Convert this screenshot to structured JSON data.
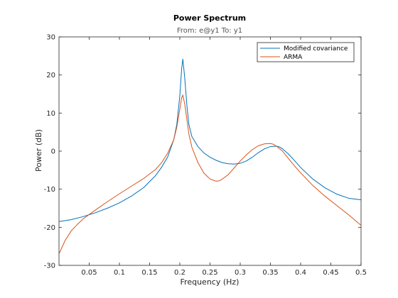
{
  "chart_data": {
    "type": "line",
    "title": "Power Spectrum",
    "subtitle": "From: e@y1  To: y1",
    "xlabel": "Frequency  (Hz)",
    "ylabel": "Power (dB)",
    "xlim": [
      0,
      0.5
    ],
    "ylim": [
      -30,
      30
    ],
    "xticks": [
      0.05,
      0.1,
      0.15,
      0.2,
      0.25,
      0.3,
      0.35,
      0.4,
      0.45,
      0.5
    ],
    "xtick_labels": [
      "0.05",
      "0.1",
      "0.15",
      "0.2",
      "0.25",
      "0.3",
      "0.35",
      "0.4",
      "0.45",
      "0.5"
    ],
    "yticks": [
      -30,
      -20,
      -10,
      0,
      10,
      20,
      30
    ],
    "ytick_labels": [
      "-30",
      "-20",
      "-10",
      "0",
      "10",
      "20",
      "30"
    ],
    "grid": false,
    "legend_position": "top-right",
    "series": [
      {
        "name": "Modified covariance",
        "color": "#0072BD",
        "x": [
          0.0,
          0.02,
          0.04,
          0.06,
          0.08,
          0.1,
          0.12,
          0.14,
          0.16,
          0.17,
          0.18,
          0.19,
          0.195,
          0.2,
          0.203,
          0.205,
          0.208,
          0.212,
          0.215,
          0.22,
          0.23,
          0.24,
          0.25,
          0.26,
          0.27,
          0.28,
          0.29,
          0.3,
          0.31,
          0.32,
          0.33,
          0.34,
          0.35,
          0.36,
          0.365,
          0.37,
          0.38,
          0.39,
          0.4,
          0.42,
          0.44,
          0.46,
          0.48,
          0.5
        ],
        "y": [
          -18.5,
          -18.0,
          -17.2,
          -16.2,
          -15.0,
          -13.6,
          -11.8,
          -9.6,
          -6.4,
          -4.2,
          -1.5,
          3.0,
          7.0,
          14.5,
          21.5,
          24.2,
          19.5,
          11.5,
          7.0,
          3.8,
          1.2,
          -0.5,
          -1.6,
          -2.4,
          -3.0,
          -3.3,
          -3.4,
          -3.2,
          -2.6,
          -1.6,
          -0.4,
          0.6,
          1.2,
          1.3,
          1.1,
          0.6,
          -0.8,
          -2.5,
          -4.3,
          -7.3,
          -9.6,
          -11.3,
          -12.4,
          -12.8
        ]
      },
      {
        "name": "ARMA",
        "color": "#D95319",
        "x": [
          0.0,
          0.01,
          0.02,
          0.03,
          0.04,
          0.06,
          0.08,
          0.1,
          0.12,
          0.14,
          0.16,
          0.17,
          0.18,
          0.19,
          0.195,
          0.2,
          0.203,
          0.205,
          0.208,
          0.212,
          0.215,
          0.22,
          0.23,
          0.24,
          0.25,
          0.26,
          0.265,
          0.27,
          0.28,
          0.29,
          0.3,
          0.31,
          0.32,
          0.33,
          0.34,
          0.35,
          0.355,
          0.36,
          0.37,
          0.38,
          0.39,
          0.4,
          0.42,
          0.44,
          0.46,
          0.48,
          0.5
        ],
        "y": [
          -27.0,
          -23.5,
          -21.0,
          -19.3,
          -17.8,
          -15.5,
          -13.3,
          -11.2,
          -9.2,
          -7.2,
          -4.8,
          -3.0,
          -0.5,
          3.0,
          6.3,
          11.0,
          14.0,
          14.7,
          12.5,
          8.0,
          4.5,
          1.0,
          -3.0,
          -5.8,
          -7.3,
          -7.9,
          -7.8,
          -7.4,
          -6.2,
          -4.4,
          -2.6,
          -1.0,
          0.4,
          1.4,
          1.9,
          2.0,
          1.8,
          1.3,
          0.0,
          -2.0,
          -3.9,
          -5.7,
          -9.0,
          -11.8,
          -14.3,
          -16.8,
          -19.5
        ]
      }
    ]
  }
}
